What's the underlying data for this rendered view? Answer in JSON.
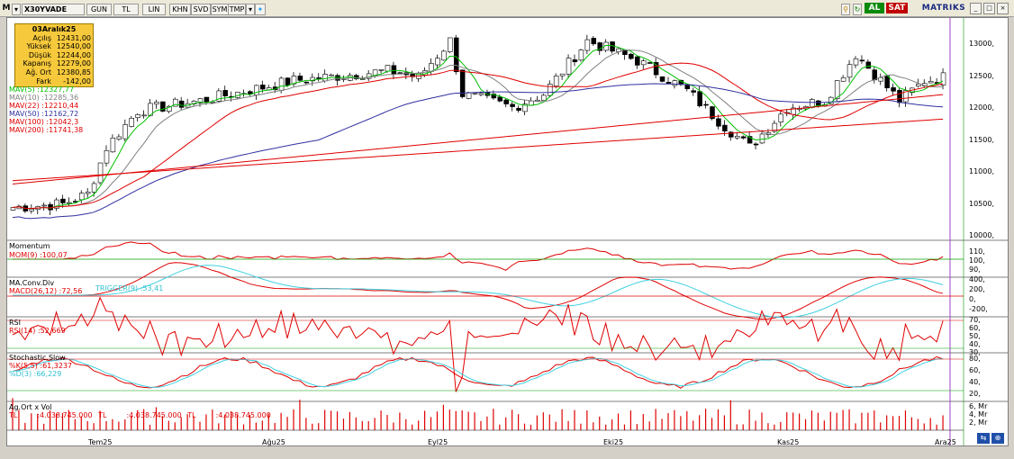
{
  "toolbar": {
    "symbol": "X30YVADE",
    "buttons": [
      "GUN",
      "TL",
      "LIN",
      "KHN",
      "SVD",
      "SYM",
      "TMP"
    ],
    "logo_m": "M",
    "al": "AL",
    "sat": "SAT",
    "brand": "MATRIKS"
  },
  "info": {
    "date": "03Aralık25",
    "rows": [
      {
        "label": "Açılış",
        "value": "12431,00"
      },
      {
        "label": "Yüksek",
        "value": "12540,00"
      },
      {
        "label": "Düşük",
        "value": "12244,00"
      },
      {
        "label": "Kapanış",
        "value": "12279,00"
      },
      {
        "label": "Ağ. Ort",
        "value": "12380,85"
      },
      {
        "label": "Fark",
        "value": "-142,00"
      }
    ]
  },
  "mav": [
    {
      "label": "MAV(5)",
      "value": "12327,77",
      "color": "#00c000"
    },
    {
      "label": "MAV(10)",
      "value": "12285,36",
      "color": "#808080"
    },
    {
      "label": "MAV(22)",
      "value": "12210,44",
      "color": "#e00000"
    },
    {
      "label": "MAV(50)",
      "value": "12162,72",
      "color": "#3030a0"
    },
    {
      "label": "MAV(100)",
      "value": "12042,3",
      "color": "#e00000"
    },
    {
      "label": "MAV(200)",
      "value": "11741,38",
      "color": "#e00000"
    }
  ],
  "price_axis": [
    "13000,",
    "12500,",
    "12000,",
    "11500,",
    "11000,",
    "10500,",
    "10000,"
  ],
  "momentum": {
    "title": "Momentum",
    "label": "MOM(9)",
    "value": "100,07",
    "axis": [
      "110,",
      "100,",
      "90,"
    ]
  },
  "macd": {
    "title": "MA.Conv.Div",
    "label": "MACD(26,12)",
    "value": "72,56",
    "trigger_label": "TRIGGER(9)",
    "trigger_value": "53,41",
    "axis": [
      "400,",
      "200,",
      "0,",
      "-200,"
    ]
  },
  "rsi": {
    "title": "RSI",
    "label": "RSI(14)",
    "value": "52,669",
    "axis": [
      "70,",
      "60,",
      "50,",
      "40,",
      "30,"
    ]
  },
  "stoch": {
    "title": "Stochastic.Slow",
    "k_label": "%K(5,5)",
    "k_value": "61,3237",
    "d_label": "%D(3)",
    "d_value": "66,229",
    "axis": [
      "80,",
      "60,",
      "40,",
      "20,"
    ]
  },
  "vol": {
    "title": "Ag.Ort x Vol",
    "items": [
      {
        "label": "TL",
        "value": "4.038.745.000"
      },
      {
        "label": "TL",
        "value": "4.038.745.000"
      },
      {
        "label": "TL",
        "value": "4.038.745.000"
      }
    ],
    "axis": [
      "6, Mr",
      "4, Mr",
      "2, Mr"
    ]
  },
  "months": [
    "Tem25",
    "Ağu25",
    "Eyl25",
    "Eki25",
    "Kas25",
    "Ara25"
  ],
  "colors": {
    "up": "#ffffff",
    "down": "#000000",
    "panel_bg": "#ffffff",
    "green": "#00a000",
    "red": "#e00000",
    "cyan": "#40d0e0"
  }
}
